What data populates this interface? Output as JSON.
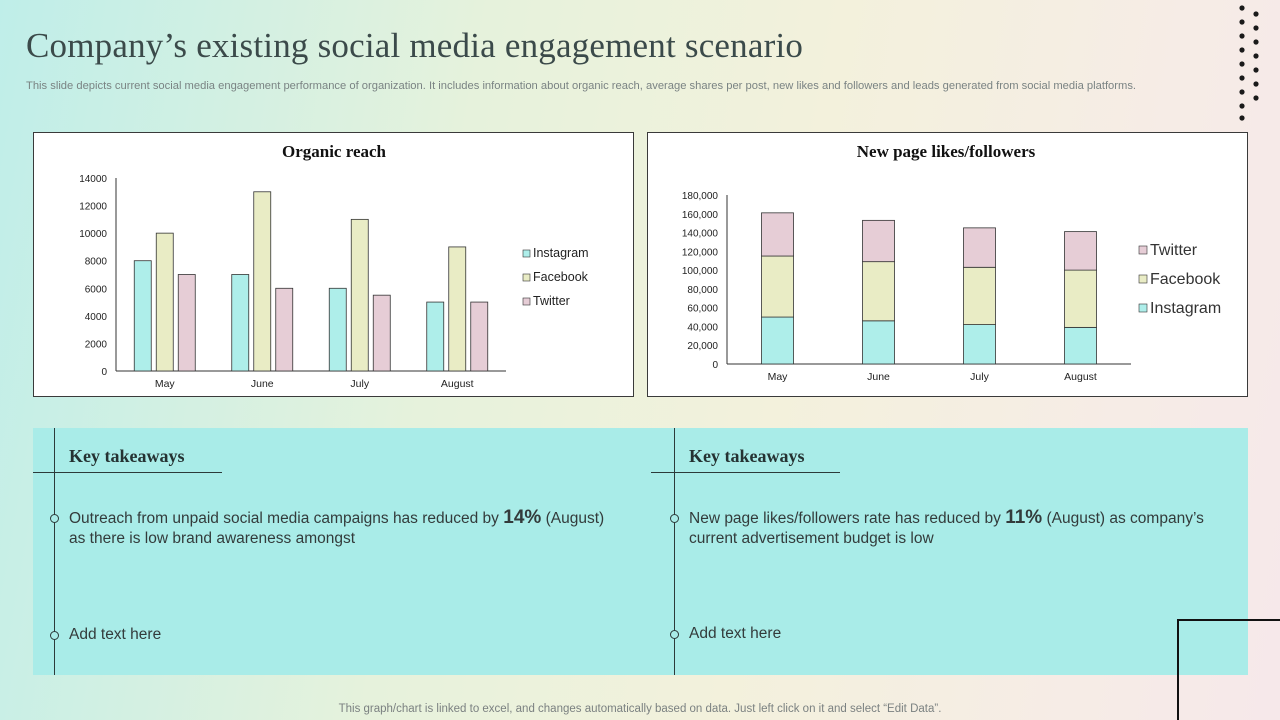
{
  "title": "Company’s existing social media engagement scenario",
  "subtitle": "This slide depicts current social media engagement performance of organization. It includes information about organic reach, average shares per post, new likes and followers and leads generated from social media platforms.",
  "colors": {
    "instagram": "#aeeeea",
    "facebook": "#e9ecc5",
    "twitter": "#e6cdd6",
    "axis": "#333333"
  },
  "chart_data": [
    {
      "type": "bar",
      "title": "Organic reach",
      "categories": [
        "May",
        "June",
        "July",
        "August"
      ],
      "series": [
        {
          "name": "Instagram",
          "values": [
            8000,
            7000,
            6000,
            5000
          ]
        },
        {
          "name": "Facebook",
          "values": [
            10000,
            13000,
            11000,
            9000
          ]
        },
        {
          "name": "Twitter",
          "values": [
            7000,
            6000,
            5500,
            5000
          ]
        }
      ],
      "yticks": [
        "0",
        "2000",
        "4000",
        "6000",
        "8000",
        "10000",
        "12000",
        "14000"
      ],
      "ylim": [
        0,
        14000
      ],
      "legend": [
        "Instagram",
        "Facebook",
        "Twitter"
      ],
      "legend_position": "right"
    },
    {
      "type": "bar",
      "stacked": true,
      "title": "New page likes/followers",
      "categories": [
        "May",
        "June",
        "July",
        "August"
      ],
      "series": [
        {
          "name": "Instagram",
          "values": [
            50000,
            46000,
            42000,
            39000
          ]
        },
        {
          "name": "Facebook",
          "values": [
            65000,
            63000,
            61000,
            61000
          ]
        },
        {
          "name": "Twitter",
          "values": [
            46000,
            44000,
            42000,
            41000
          ]
        }
      ],
      "yticks": [
        "0",
        "20,000",
        "40,000",
        "60,000",
        "80,000",
        "100,000",
        "120,000",
        "140,000",
        "160,000",
        "180,000"
      ],
      "ylim": [
        0,
        180000
      ],
      "legend": [
        "Twitter",
        "Facebook",
        "Instagram"
      ],
      "legend_position": "right"
    }
  ],
  "takeaways": [
    {
      "heading": "Key takeaways",
      "point1_pre": "Outreach from unpaid social media campaigns has reduced by ",
      "point1_pct": "14%",
      "point1_post": " (August) as there is low brand awareness amongst",
      "point2": "Add text here"
    },
    {
      "heading": "Key takeaways",
      "point1_pre": "New page likes/followers rate has reduced by ",
      "point1_pct": "11%",
      "point1_post": " (August) as company’s current advertisement budget is low",
      "point2": "Add text here"
    }
  ],
  "footer": "This graph/chart is linked to excel,  and changes automatically based on data. Just left click on it and select “Edit Data”."
}
